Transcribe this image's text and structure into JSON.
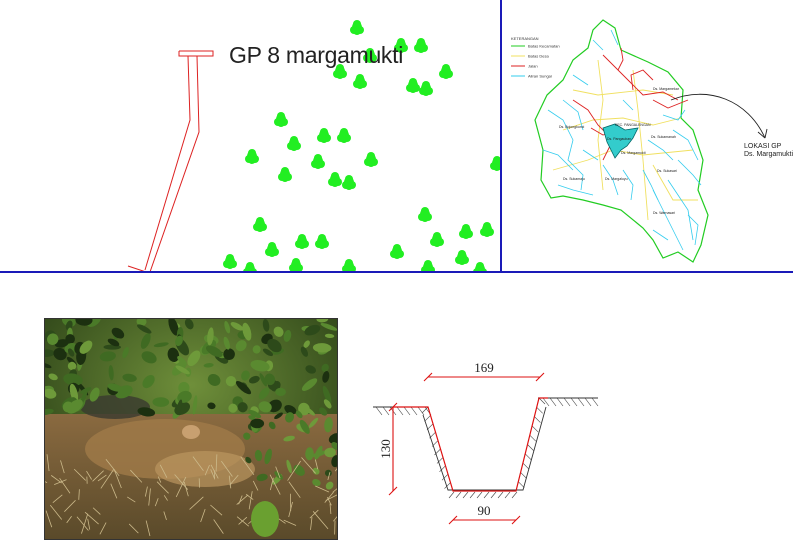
{
  "title": "GP 8 margamukti",
  "map": {
    "legend_title": "KETERANGAN",
    "legend": [
      {
        "label": "Batas Kecamatan",
        "color": "#22cc22"
      },
      {
        "label": "Batas Desa",
        "color": "#f0e060"
      },
      {
        "label": "Jalan",
        "color": "#dd2222"
      },
      {
        "label": "Aliran Sungai",
        "color": "#33ccee"
      }
    ],
    "gp_location_line1": "LOKASI GP",
    "gp_location_line2": "Ds. Margamukti",
    "village_labels": [
      "Ds. Margamukti",
      "Ds. Pangauban",
      "Ds. Sukamanah",
      "Ds. Sukasari",
      "Ds. Margaluyu",
      "Ds. Sukamaju",
      "Ds. Bojongkunci",
      "KEC. PANGALENGAN",
      "Ds. Margamekar",
      "Ds. Warnasari"
    ]
  },
  "cross_section": {
    "top_width": "169",
    "depth": "130",
    "bottom_width": "90"
  },
  "colors": {
    "frame_line": "#1a1ab8",
    "tree": "#22ee22",
    "dimension": "#dd1111",
    "pipe": "#dd2222"
  }
}
